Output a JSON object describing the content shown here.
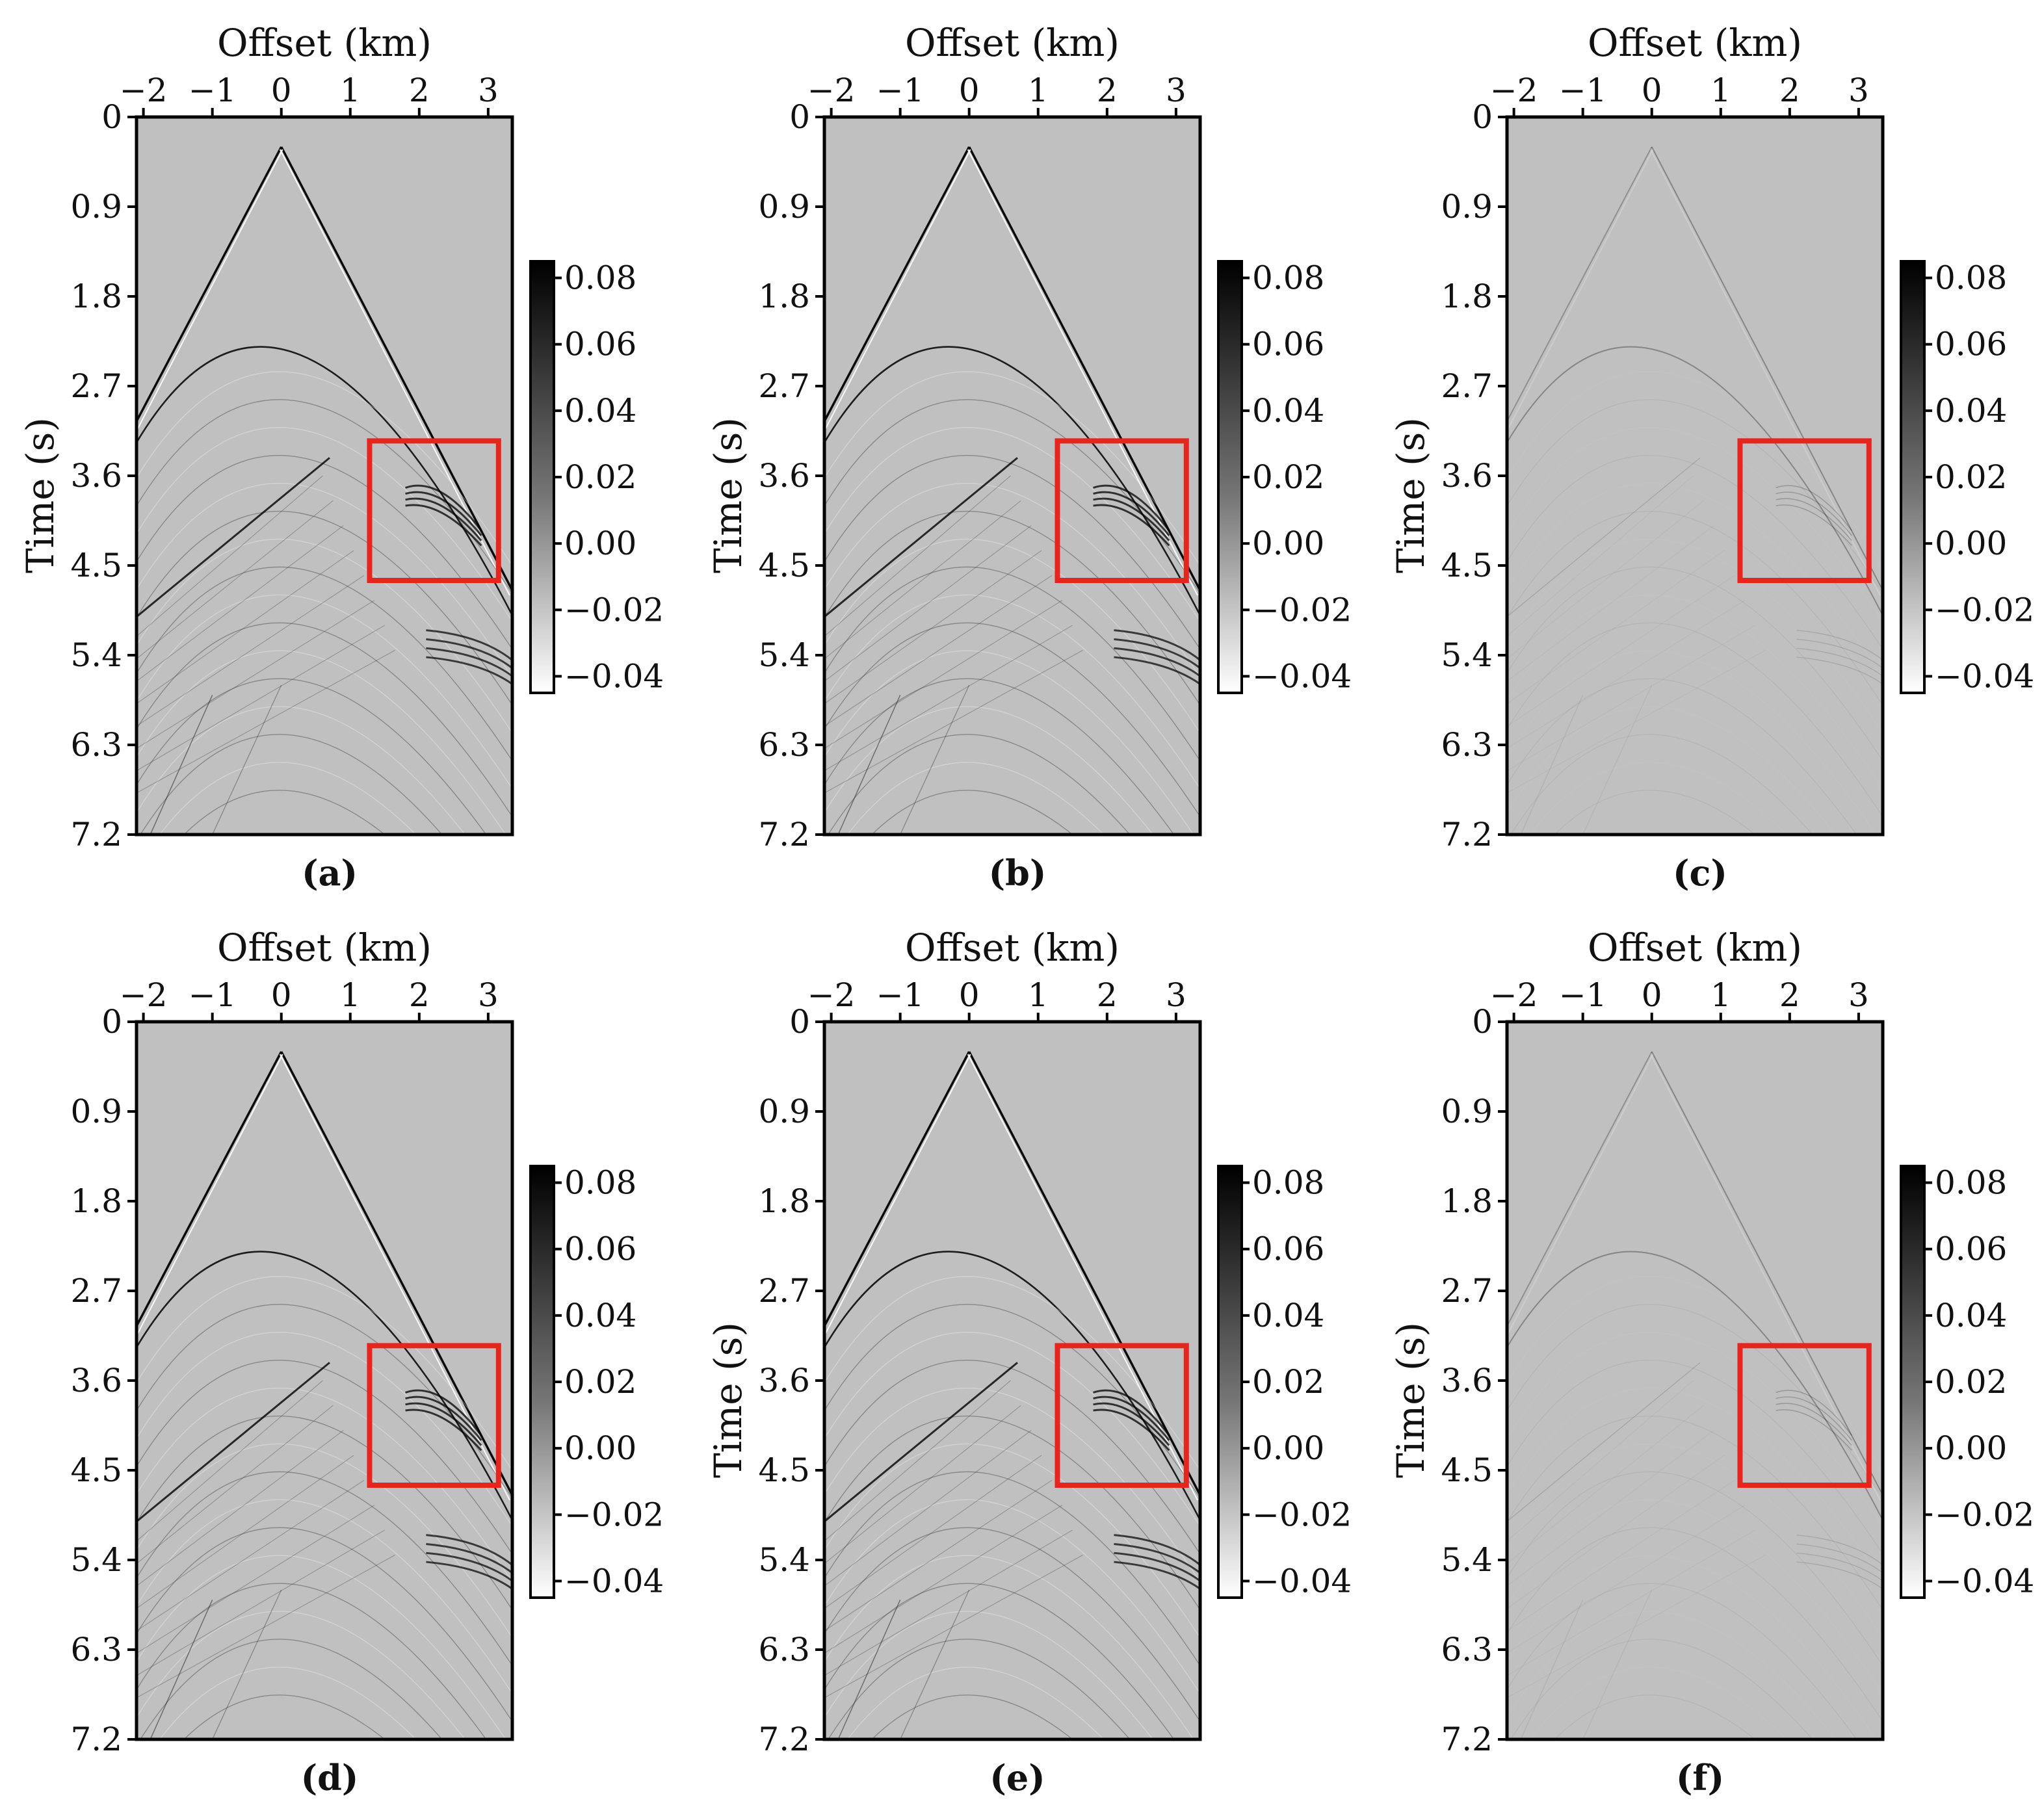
{
  "figure": {
    "panels": [
      {
        "id": "a",
        "caption": "(a)",
        "xlabel": "Offset (km)",
        "ylabel": "Time (s)",
        "variant": "full"
      },
      {
        "id": "b",
        "caption": "(b)",
        "xlabel": "Offset (km)",
        "ylabel": "Time (s)",
        "variant": "full"
      },
      {
        "id": "c",
        "caption": "(c)",
        "xlabel": "Offset (km)",
        "ylabel": "Time (s)",
        "variant": "residual"
      },
      {
        "id": "d",
        "caption": "(d)",
        "xlabel": "Offset (km)",
        "ylabel": "",
        "variant": "full"
      },
      {
        "id": "e",
        "caption": "(e)",
        "xlabel": "Offset (km)",
        "ylabel": "Time (s)",
        "variant": "full"
      },
      {
        "id": "f",
        "caption": "(f)",
        "xlabel": "Offset (km)",
        "ylabel": "Time (s)",
        "variant": "residual"
      }
    ],
    "colors": {
      "background": "#c0c0c0",
      "highlight_box": "#e8241f",
      "axis": "#000000"
    }
  },
  "chart_data": {
    "type": "heatmap",
    "colormap": "gray (white = -0.04, black = 0.08)",
    "x_axis": {
      "label": "Offset (km)",
      "ticks": [
        -2,
        -1,
        0,
        1,
        2,
        3
      ],
      "tick_labels": [
        "−2",
        "−1",
        "0",
        "1",
        "2",
        "3"
      ],
      "range": [
        -2.1,
        3.35
      ]
    },
    "y_axis": {
      "label": "Time (s)",
      "ticks": [
        0,
        0.9,
        1.8,
        2.7,
        3.6,
        4.5,
        5.4,
        6.3,
        7.2
      ],
      "tick_labels": [
        "0",
        "0.9",
        "1.8",
        "2.7",
        "3.6",
        "4.5",
        "5.4",
        "6.3",
        "7.2"
      ],
      "range": [
        0,
        7.2
      ],
      "inverted": true
    },
    "colorbar": {
      "ticks": [
        0.08,
        0.06,
        0.04,
        0.02,
        0.0,
        -0.02,
        -0.04
      ],
      "tick_labels": [
        "0.08",
        "0.06",
        "0.04",
        "0.02",
        "0.00",
        "−0.02",
        "−0.04"
      ],
      "range": [
        -0.045,
        0.085
      ]
    },
    "highlight_box": {
      "x_range": [
        1.28,
        3.15
      ],
      "t_range": [
        3.25,
        4.65
      ]
    }
  }
}
